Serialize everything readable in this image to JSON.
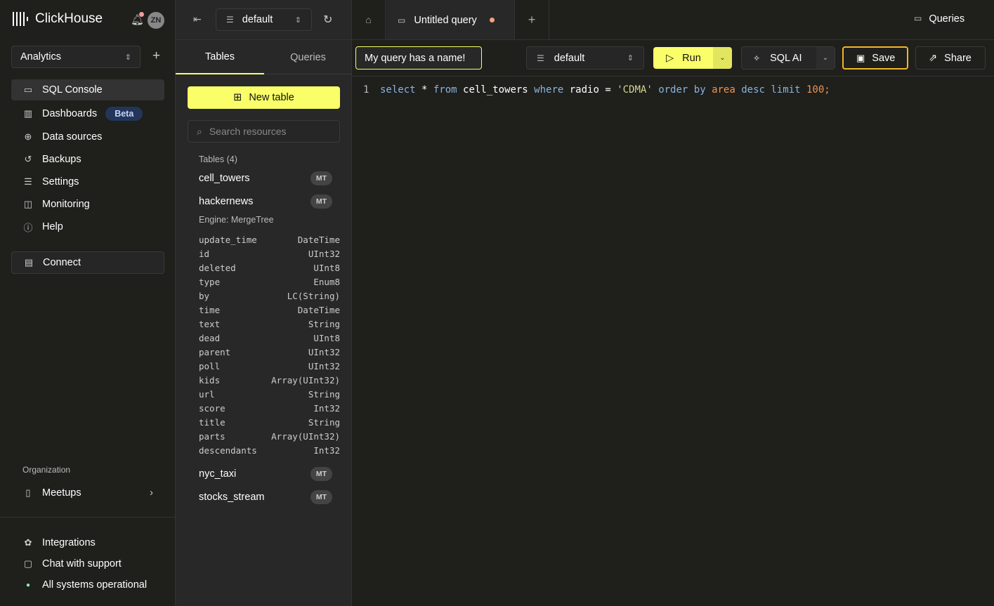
{
  "app": {
    "name": "ClickHouse",
    "avatar": "ZN",
    "notification_dot_color": "#f59a9a"
  },
  "sidebar": {
    "service": "Analytics",
    "items": [
      {
        "label": "SQL Console",
        "icon": "monitor-icon"
      },
      {
        "label": "Dashboards",
        "icon": "chart-icon",
        "badge": "Beta"
      },
      {
        "label": "Data sources",
        "icon": "plug-icon"
      },
      {
        "label": "Backups",
        "icon": "history-icon"
      },
      {
        "label": "Settings",
        "icon": "sliders-icon"
      },
      {
        "label": "Monitoring",
        "icon": "activity-icon"
      },
      {
        "label": "Help",
        "icon": "help-icon"
      }
    ],
    "connect": "Connect",
    "org_label": "Organization",
    "org": "Meetups",
    "footer": [
      {
        "label": "Integrations"
      },
      {
        "label": "Chat with support"
      },
      {
        "label": "All systems operational",
        "status_color": "#8ef0a8"
      }
    ]
  },
  "panel": {
    "database": "default",
    "tabs": [
      "Tables",
      "Queries"
    ],
    "new_table": "New table",
    "search_placeholder": "Search resources",
    "tables_header": "Tables (4)",
    "tables": [
      {
        "name": "cell_towers",
        "engine_badge": "MT"
      },
      {
        "name": "hackernews",
        "engine_badge": "MT",
        "engine": "Engine: MergeTree",
        "columns": [
          [
            "update_time",
            "DateTime"
          ],
          [
            "id",
            "UInt32"
          ],
          [
            "deleted",
            "UInt8"
          ],
          [
            "type",
            "Enum8"
          ],
          [
            "by",
            "LC(String)"
          ],
          [
            "time",
            "DateTime"
          ],
          [
            "text",
            "String"
          ],
          [
            "dead",
            "UInt8"
          ],
          [
            "parent",
            "UInt32"
          ],
          [
            "poll",
            "UInt32"
          ],
          [
            "kids",
            "Array(UInt32)"
          ],
          [
            "url",
            "String"
          ],
          [
            "score",
            "Int32"
          ],
          [
            "title",
            "String"
          ],
          [
            "parts",
            "Array(UInt32)"
          ],
          [
            "descendants",
            "Int32"
          ]
        ]
      },
      {
        "name": "nyc_taxi",
        "engine_badge": "MT"
      },
      {
        "name": "stocks_stream",
        "engine_badge": "MT"
      }
    ]
  },
  "main": {
    "tab": "Untitled query",
    "unsaved_dot_color": "#f5a27a",
    "queries": "Queries",
    "query_name": "My query has a name!",
    "database": "default",
    "run": "Run",
    "sql_ai": "SQL AI",
    "save": "Save",
    "share": "Share",
    "accent": "#faff69",
    "editor": {
      "line": "1",
      "tokens": [
        [
          "kw",
          "select"
        ],
        [
          "id",
          " * "
        ],
        [
          "kw",
          "from"
        ],
        [
          "id",
          " cell_towers "
        ],
        [
          "kw",
          "where"
        ],
        [
          "id",
          " radio = "
        ],
        [
          "str",
          "'CDMA'"
        ],
        [
          "id",
          " "
        ],
        [
          "kw",
          "order by"
        ],
        [
          "id",
          " "
        ],
        [
          "num",
          "area"
        ],
        [
          "id",
          " "
        ],
        [
          "kw",
          "desc limit"
        ],
        [
          "id",
          " "
        ],
        [
          "num",
          "100"
        ],
        [
          "num",
          ";"
        ]
      ]
    }
  }
}
